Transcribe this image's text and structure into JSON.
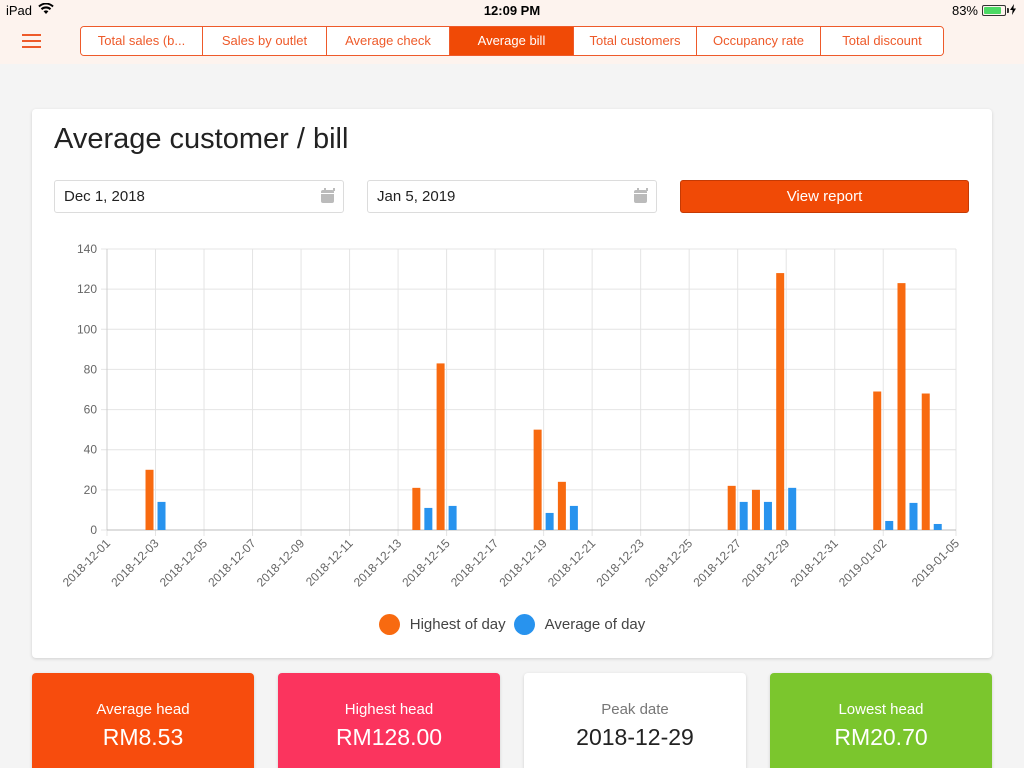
{
  "status_bar": {
    "device": "iPad",
    "time": "12:09 PM",
    "battery": "83%",
    "battery_level": 0.83
  },
  "tabs": [
    {
      "label": "Total sales (b...",
      "active": false
    },
    {
      "label": "Sales by outlet",
      "active": false
    },
    {
      "label": "Average check",
      "active": false
    },
    {
      "label": "Average bill",
      "active": true
    },
    {
      "label": "Total customers",
      "active": false
    },
    {
      "label": "Occupancy rate",
      "active": false
    },
    {
      "label": "Total discount",
      "active": false
    }
  ],
  "report": {
    "title": "Average customer / bill",
    "start_date": "Dec 1, 2018",
    "end_date": "Jan 5, 2019",
    "view_button": "View report"
  },
  "chart_data": {
    "type": "bar",
    "ylim": [
      0,
      140
    ],
    "yticks": [
      0,
      20,
      40,
      60,
      80,
      100,
      120,
      140
    ],
    "xlim": [
      "2018-12-01",
      "2019-01-05"
    ],
    "xtick_labels": [
      "2018-12-01",
      "2018-12-03",
      "2018-12-05",
      "2018-12-07",
      "2018-12-09",
      "2018-12-11",
      "2018-12-13",
      "2018-12-15",
      "2018-12-17",
      "2018-12-19",
      "2018-12-21",
      "2018-12-23",
      "2018-12-25",
      "2018-12-27",
      "2018-12-29",
      "2018-12-31",
      "2019-01-02",
      "2019-01-05"
    ],
    "x": [
      "2018-12-03",
      "2018-12-14",
      "2018-12-15",
      "2018-12-19",
      "2018-12-20",
      "2018-12-27",
      "2018-12-28",
      "2018-12-29",
      "2019-01-02",
      "2019-01-03",
      "2019-01-04"
    ],
    "series": [
      {
        "name": "Highest of day",
        "color": "#f86a10",
        "values": [
          30,
          21,
          83,
          50,
          24,
          22,
          20,
          128,
          69,
          123,
          68
        ]
      },
      {
        "name": "Average of day",
        "color": "#2893ee",
        "values": [
          14,
          11,
          12,
          8.5,
          12,
          14,
          14,
          21,
          4.5,
          13.5,
          3
        ]
      }
    ],
    "grid": true,
    "legend": "bottom"
  },
  "stats": [
    {
      "label": "Average head",
      "value": "RM8.53",
      "bg": "#f74c0d",
      "fg": "#ffffff"
    },
    {
      "label": "Highest head",
      "value": "RM128.00",
      "bg": "#fb345e",
      "fg": "#ffffff"
    },
    {
      "label": "Peak date",
      "value": "2018-12-29",
      "bg": "#ffffff",
      "fg": "#222222",
      "label_fg": "#777777"
    },
    {
      "label": "Lowest head",
      "value": "RM20.70",
      "bg": "#7bc62d",
      "fg": "#ffffff"
    }
  ]
}
